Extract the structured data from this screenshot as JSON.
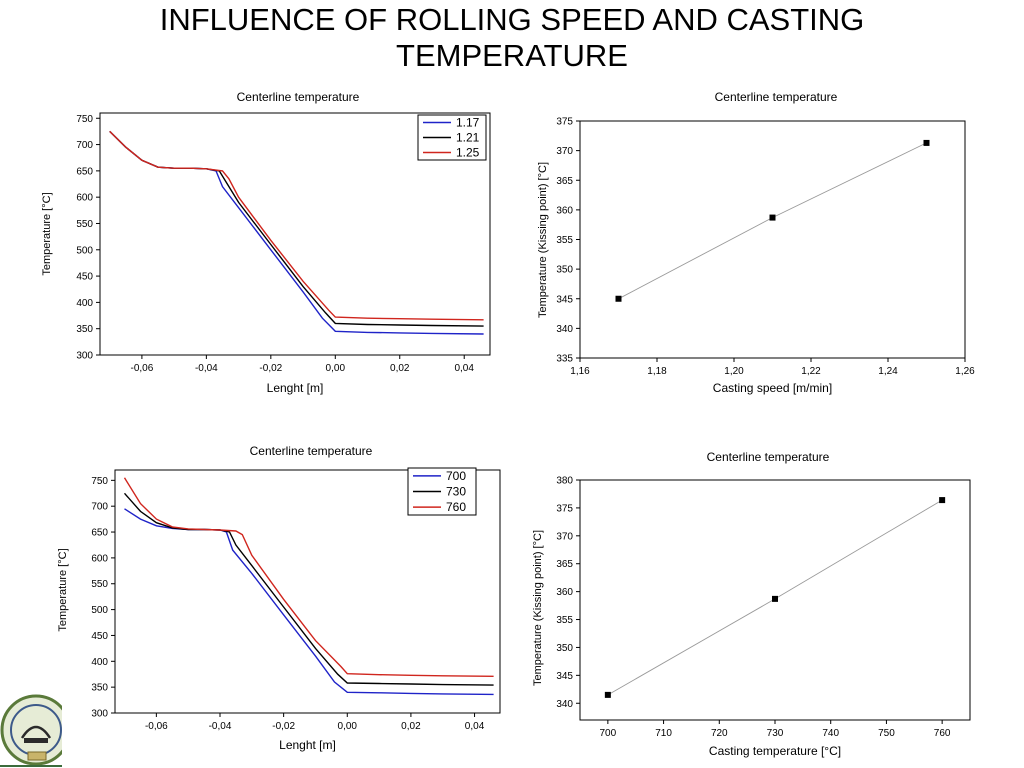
{
  "slide": {
    "title_line1": "INFLUENCE OF ROLLING SPEED AND CASTING",
    "title_line2": "TEMPERATURE"
  },
  "chart_data": [
    {
      "id": "tl",
      "type": "line",
      "title": "Centerline temperature",
      "xlabel": "Lenght [m]",
      "ylabel": "Temperature [°C]",
      "xlim": [
        -0.073,
        0.048
      ],
      "ylim": [
        300,
        760
      ],
      "xticks": [
        -0.06,
        -0.04,
        -0.02,
        0.0,
        0.02,
        0.04
      ],
      "xtick_labels": [
        "-0,06",
        "-0,04",
        "-0,02",
        "0,00",
        "0,02",
        "0,04"
      ],
      "yticks": [
        300,
        350,
        400,
        450,
        500,
        550,
        600,
        650,
        700,
        750
      ],
      "ytick_labels": [
        "300",
        "350",
        "400",
        "450",
        "500",
        "550",
        "600",
        "650",
        "700",
        "750"
      ],
      "legend_position": "top-right",
      "grid": false,
      "series": [
        {
          "name": "1.17",
          "color": "#1f23c8",
          "x": [
            -0.07,
            -0.065,
            -0.06,
            -0.055,
            -0.05,
            -0.045,
            -0.04,
            -0.037,
            -0.035,
            -0.03,
            -0.02,
            -0.01,
            -0.004,
            0.0,
            0.01,
            0.02,
            0.03,
            0.046
          ],
          "y": [
            725,
            695,
            670,
            657,
            655,
            655,
            654,
            650,
            620,
            580,
            500,
            420,
            370,
            345,
            343,
            342,
            341,
            340
          ]
        },
        {
          "name": "1.21",
          "color": "#000000",
          "x": [
            -0.07,
            -0.065,
            -0.06,
            -0.055,
            -0.05,
            -0.045,
            -0.04,
            -0.036,
            -0.034,
            -0.03,
            -0.02,
            -0.01,
            -0.003,
            0.0,
            0.01,
            0.02,
            0.03,
            0.046
          ],
          "y": [
            725,
            695,
            670,
            657,
            655,
            655,
            654,
            650,
            630,
            590,
            510,
            430,
            380,
            360,
            358,
            357,
            356,
            355
          ]
        },
        {
          "name": "1.25",
          "color": "#d0261e",
          "x": [
            -0.07,
            -0.065,
            -0.06,
            -0.055,
            -0.05,
            -0.045,
            -0.04,
            -0.035,
            -0.033,
            -0.03,
            -0.02,
            -0.01,
            -0.002,
            0.0,
            0.01,
            0.02,
            0.03,
            0.046
          ],
          "y": [
            725,
            695,
            670,
            657,
            655,
            655,
            654,
            650,
            635,
            600,
            518,
            440,
            385,
            372,
            370,
            369,
            368,
            367
          ]
        }
      ]
    },
    {
      "id": "tr",
      "type": "line",
      "title": "Centerline temperature",
      "xlabel": "Casting speed [m/min]",
      "ylabel": "Temperature (Kissing point) [°C]",
      "xlim": [
        1.16,
        1.26
      ],
      "ylim": [
        335,
        375
      ],
      "xticks": [
        1.16,
        1.18,
        1.2,
        1.22,
        1.24,
        1.26
      ],
      "xtick_labels": [
        "1,16",
        "1,18",
        "1,20",
        "1,22",
        "1,24",
        "1,26"
      ],
      "yticks": [
        335,
        340,
        345,
        350,
        355,
        360,
        365,
        370,
        375
      ],
      "ytick_labels": [
        "335",
        "340",
        "345",
        "350",
        "355",
        "360",
        "365",
        "370",
        "375"
      ],
      "grid": false,
      "series": [
        {
          "color": "#000000",
          "x": [
            1.17,
            1.21,
            1.25
          ],
          "y": [
            345.0,
            358.7,
            371.3
          ]
        }
      ]
    },
    {
      "id": "bl",
      "type": "line",
      "title": "Centerline temperature",
      "xlabel": "Lenght [m]",
      "ylabel": "Temperature [°C]",
      "xlim": [
        -0.073,
        0.048
      ],
      "ylim": [
        300,
        770
      ],
      "xticks": [
        -0.06,
        -0.04,
        -0.02,
        0.0,
        0.02,
        0.04
      ],
      "xtick_labels": [
        "-0,06",
        "-0,04",
        "-0,02",
        "0,00",
        "0,02",
        "0,04"
      ],
      "yticks": [
        300,
        350,
        400,
        450,
        500,
        550,
        600,
        650,
        700,
        750
      ],
      "ytick_labels": [
        "300",
        "350",
        "400",
        "450",
        "500",
        "550",
        "600",
        "650",
        "700",
        "750"
      ],
      "legend_position": "top-right",
      "grid": false,
      "series": [
        {
          "name": "700",
          "color": "#1f23c8",
          "x": [
            -0.07,
            -0.065,
            -0.06,
            -0.055,
            -0.05,
            -0.045,
            -0.04,
            -0.038,
            -0.036,
            -0.03,
            -0.02,
            -0.01,
            -0.004,
            0.0,
            0.01,
            0.02,
            0.03,
            0.046
          ],
          "y": [
            695,
            675,
            662,
            657,
            655,
            655,
            654,
            650,
            615,
            570,
            490,
            410,
            360,
            340,
            339,
            338,
            337,
            336
          ]
        },
        {
          "name": "730",
          "color": "#000000",
          "x": [
            -0.07,
            -0.065,
            -0.06,
            -0.055,
            -0.05,
            -0.045,
            -0.04,
            -0.037,
            -0.035,
            -0.03,
            -0.02,
            -0.01,
            -0.003,
            0.0,
            0.01,
            0.02,
            0.03,
            0.046
          ],
          "y": [
            725,
            690,
            668,
            658,
            655,
            655,
            654,
            650,
            625,
            585,
            505,
            425,
            375,
            358,
            357,
            356,
            355,
            354
          ]
        },
        {
          "name": "760",
          "color": "#d0261e",
          "x": [
            -0.07,
            -0.065,
            -0.06,
            -0.055,
            -0.05,
            -0.045,
            -0.04,
            -0.035,
            -0.033,
            -0.03,
            -0.02,
            -0.01,
            -0.002,
            0.0,
            0.01,
            0.02,
            0.03,
            0.046
          ],
          "y": [
            755,
            705,
            675,
            660,
            656,
            655,
            654,
            652,
            645,
            605,
            520,
            440,
            390,
            376,
            374,
            373,
            372,
            371
          ]
        }
      ]
    },
    {
      "id": "br",
      "type": "line",
      "title": "Centerline temperature",
      "xlabel": "Casting temperature [°C]",
      "ylabel": "Temperature (Kissing point) [°C]",
      "xlim": [
        695,
        765
      ],
      "ylim": [
        337,
        380
      ],
      "xticks": [
        700,
        710,
        720,
        730,
        740,
        750,
        760
      ],
      "xtick_labels": [
        "700",
        "710",
        "720",
        "730",
        "740",
        "750",
        "760"
      ],
      "yticks": [
        340,
        345,
        350,
        355,
        360,
        365,
        370,
        375,
        380
      ],
      "ytick_labels": [
        "340",
        "345",
        "350",
        "355",
        "360",
        "365",
        "370",
        "375",
        "380"
      ],
      "grid": false,
      "series": [
        {
          "color": "#000000",
          "x": [
            700,
            730,
            760
          ],
          "y": [
            341.5,
            358.7,
            376.4
          ]
        }
      ]
    }
  ]
}
